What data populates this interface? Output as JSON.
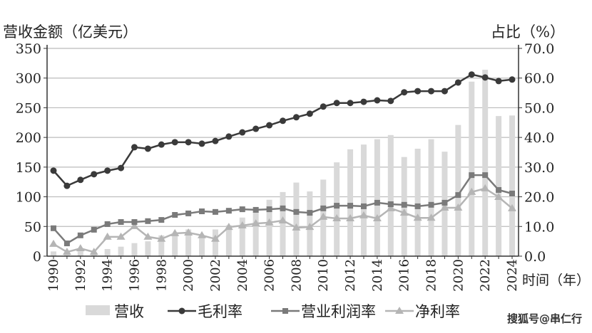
{
  "chart_data": {
    "type": "bar+line",
    "left_axis_label": "营收金额（亿美元）",
    "right_axis_label": "占比（%）",
    "x_axis_label": "时间（年）",
    "left_ylim": [
      0,
      350
    ],
    "right_ylim": [
      0,
      70
    ],
    "left_ticks": [
      "0",
      "50",
      "100",
      "150",
      "200",
      "250",
      "300",
      "350"
    ],
    "right_ticks": [
      "0.0",
      "10.0",
      "20.0",
      "30.0",
      "40.0",
      "50.0",
      "60.0",
      "70.0"
    ],
    "years": [
      1990,
      1991,
      1992,
      1993,
      1994,
      1995,
      1996,
      1997,
      1998,
      1999,
      2000,
      2001,
      2002,
      2003,
      2004,
      2005,
      2006,
      2007,
      2008,
      2009,
      2010,
      2011,
      2012,
      2013,
      2014,
      2015,
      2016,
      2017,
      2018,
      2019,
      2020,
      2021,
      2022,
      2023,
      2024
    ],
    "grid": true,
    "legend_position": "bottom",
    "series": [
      {
        "name": "营收",
        "kind": "bar",
        "axis": "left",
        "color": "#d9d9d9",
        "values": [
          8,
          4,
          8,
          6,
          12,
          16,
          22,
          25,
          35,
          38,
          45,
          34,
          45,
          52,
          65,
          75,
          95,
          108,
          124,
          109,
          129,
          158,
          180,
          188,
          197,
          204,
          167,
          181,
          197,
          176,
          221,
          294,
          314,
          236,
          237
        ]
      },
      {
        "name": "毛利率",
        "kind": "line",
        "marker": "circle",
        "axis": "right",
        "color": "#3a3a3a",
        "values": [
          28.8,
          23.7,
          25.7,
          27.6,
          28.8,
          29.7,
          36.7,
          36.2,
          37.6,
          38.4,
          38.4,
          37.9,
          38.8,
          40.3,
          41.7,
          42.9,
          44.1,
          45.6,
          46.8,
          48.0,
          50.4,
          51.6,
          51.6,
          52.0,
          52.5,
          52.3,
          55.2,
          55.6,
          55.6,
          55.6,
          58.5,
          61.2,
          60.2,
          59.0,
          59.5
        ]
      },
      {
        "name": "营业利润率",
        "kind": "line",
        "marker": "square",
        "axis": "right",
        "color": "#7a7a7a",
        "values": [
          9.4,
          4.3,
          7.0,
          8.9,
          10.8,
          11.5,
          11.5,
          11.8,
          12.2,
          13.9,
          14.4,
          15.1,
          14.9,
          15.3,
          15.8,
          15.6,
          15.8,
          16.1,
          14.9,
          14.6,
          16.1,
          17.0,
          17.0,
          16.8,
          18.0,
          17.5,
          17.3,
          16.8,
          17.3,
          18.0,
          20.6,
          27.3,
          27.3,
          22.3,
          21.1
        ]
      },
      {
        "name": "净利率",
        "kind": "line",
        "marker": "triangle",
        "axis": "right",
        "color": "#b5b5b5",
        "values": [
          4.1,
          1.4,
          2.6,
          1.4,
          6.5,
          6.5,
          10.1,
          6.5,
          5.8,
          7.7,
          7.9,
          7.0,
          5.8,
          9.8,
          10.3,
          11.0,
          11.3,
          12.0,
          9.6,
          9.8,
          13.2,
          12.7,
          12.7,
          13.7,
          12.7,
          16.1,
          14.6,
          12.9,
          12.9,
          16.3,
          16.3,
          21.6,
          22.8,
          19.9,
          16.1
        ]
      }
    ]
  },
  "watermark": "搜狐号@串仁行"
}
